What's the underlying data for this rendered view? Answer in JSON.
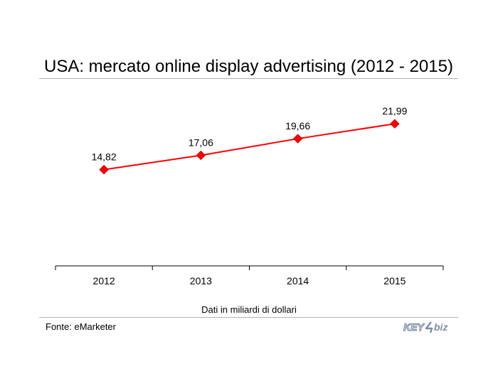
{
  "page": {
    "title": "USA: mercato online display advertising (2012 - 2015)",
    "subtitle": "Dati in miliardi di dollari",
    "source": "Fonte: eMarketer",
    "logo": {
      "text_left": "KEY",
      "text_right": "biz",
      "color": "#7f8fa6"
    }
  },
  "chart_data": {
    "type": "line",
    "categories": [
      "2012",
      "2013",
      "2014",
      "2015"
    ],
    "series": [
      {
        "values": [
          14.82,
          17.06,
          19.66,
          21.99
        ],
        "labels": [
          "14,82",
          "17,06",
          "19,66",
          "21,99"
        ],
        "color": "#ff0000",
        "marker": "diamond"
      }
    ],
    "title": "",
    "xlabel": "",
    "ylabel": "",
    "ylim": [
      0,
      24
    ],
    "grid": false,
    "legend": "none"
  }
}
